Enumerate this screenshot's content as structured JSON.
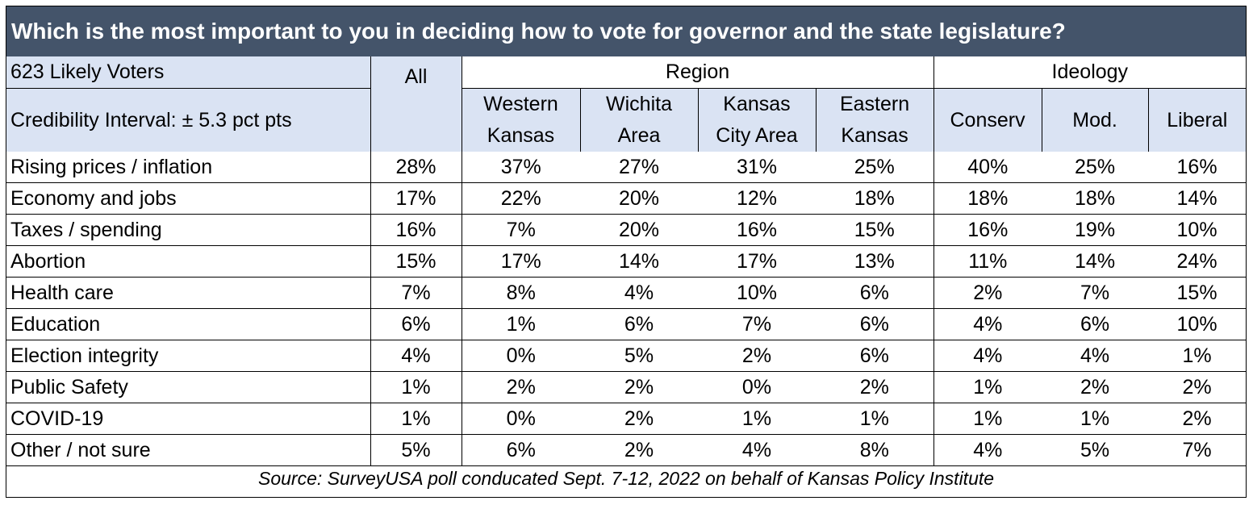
{
  "title": "Which is the most important to you in deciding how to vote for governor and the state legislature?",
  "chart_data": {
    "type": "table",
    "sample_label": "623 Likely Voters",
    "interval_label": "Credibility Interval: ± 5.3 pct pts",
    "groups": [
      {
        "name": "Region",
        "span": 4
      },
      {
        "name": "Ideology",
        "span": 3
      }
    ],
    "columns": [
      {
        "line1": "All",
        "line2": ""
      },
      {
        "line1": "Western",
        "line2": "Kansas"
      },
      {
        "line1": "Wichita",
        "line2": "Area"
      },
      {
        "line1": "Kansas",
        "line2": "City Area"
      },
      {
        "line1": "Eastern",
        "line2": "Kansas"
      },
      {
        "line1": "Conserv",
        "line2": ""
      },
      {
        "line1": "Mod.",
        "line2": ""
      },
      {
        "line1": "Liberal",
        "line2": ""
      }
    ],
    "rows": [
      {
        "label": "Rising prices / inflation",
        "values": [
          "28%",
          "37%",
          "27%",
          "31%",
          "25%",
          "40%",
          "25%",
          "16%"
        ]
      },
      {
        "label": "Economy and jobs",
        "values": [
          "17%",
          "22%",
          "20%",
          "12%",
          "18%",
          "18%",
          "18%",
          "14%"
        ]
      },
      {
        "label": "Taxes / spending",
        "values": [
          "16%",
          "7%",
          "20%",
          "16%",
          "15%",
          "16%",
          "19%",
          "10%"
        ]
      },
      {
        "label": "Abortion",
        "values": [
          "15%",
          "17%",
          "14%",
          "17%",
          "13%",
          "11%",
          "14%",
          "24%"
        ]
      },
      {
        "label": "Health care",
        "values": [
          "7%",
          "8%",
          "4%",
          "10%",
          "6%",
          "2%",
          "7%",
          "15%"
        ]
      },
      {
        "label": "Education",
        "values": [
          "6%",
          "1%",
          "6%",
          "7%",
          "6%",
          "4%",
          "6%",
          "10%"
        ]
      },
      {
        "label": "Election integrity",
        "values": [
          "4%",
          "0%",
          "5%",
          "2%",
          "6%",
          "4%",
          "4%",
          "1%"
        ]
      },
      {
        "label": "Public Safety",
        "values": [
          "1%",
          "2%",
          "2%",
          "0%",
          "2%",
          "1%",
          "2%",
          "2%"
        ]
      },
      {
        "label": "COVID-19",
        "values": [
          "1%",
          "0%",
          "2%",
          "1%",
          "1%",
          "1%",
          "1%",
          "2%"
        ]
      },
      {
        "label": "Other / not sure",
        "values": [
          "5%",
          "6%",
          "2%",
          "4%",
          "8%",
          "4%",
          "5%",
          "7%"
        ]
      }
    ],
    "source": "Source: SurveyUSA poll conducated Sept. 7-12, 2022 on behalf of Kansas Policy Institute"
  },
  "colors": {
    "title_bg": "#44546a",
    "header_bg": "#dae3f3"
  }
}
